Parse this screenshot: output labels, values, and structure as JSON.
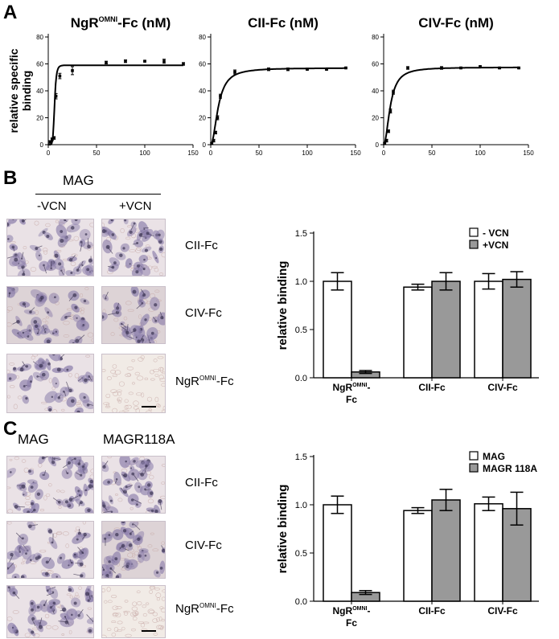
{
  "panels": {
    "A": "A",
    "B": "B",
    "C": "C"
  },
  "panelA": {
    "titles": [
      {
        "main": "NgR",
        "sup": "OMNI",
        "rest": "-Fc (nM)"
      },
      {
        "main": "CII-Fc (nM)",
        "sup": "",
        "rest": ""
      },
      {
        "main": "CIV-Fc (nM)",
        "sup": "",
        "rest": ""
      }
    ],
    "ylabel_line1": "relative specific",
    "ylabel_line2": "binding",
    "xticks": [
      "0",
      "50",
      "100",
      "150"
    ],
    "yticks": [
      "0",
      "20",
      "40",
      "60",
      "80"
    ]
  },
  "panelB": {
    "header": "MAG",
    "columns": [
      "-VCN",
      "+VCN"
    ],
    "rows": [
      "CII-Fc",
      "CIV-Fc"
    ],
    "row3_main": "NgR",
    "row3_sup": "OMNI",
    "row3_rest": "-Fc"
  },
  "panelC": {
    "columns": [
      "MAG",
      "MAGR118A"
    ],
    "rows": [
      "CII-Fc",
      "CIV-Fc"
    ],
    "row3_main": "NgR",
    "row3_sup": "OMNI",
    "row3_rest": "-Fc"
  },
  "colors": {
    "open_bar": "#ffffff",
    "grey_bar": "#999999",
    "tissue_bg": "#eae2e6",
    "cell": "#8f82ad"
  },
  "chart_data": [
    {
      "type": "scatter",
      "title": "NgR OMNI-Fc (nM)",
      "ylabel": "relative specific binding",
      "xlim": [
        0,
        150
      ],
      "ylim": [
        0,
        80
      ],
      "points": [
        [
          2,
          2
        ],
        [
          4,
          4
        ],
        [
          6,
          5
        ],
        [
          8,
          36
        ],
        [
          12,
          51
        ],
        [
          25,
          55
        ],
        [
          60,
          61
        ],
        [
          80,
          62
        ],
        [
          100,
          62
        ],
        [
          120,
          62
        ],
        [
          140,
          60
        ]
      ],
      "errors": [
        1,
        1,
        1,
        2,
        2,
        3,
        1,
        1,
        0.5,
        1.5,
        1
      ],
      "fit": {
        "bmax": 59,
        "kd": 6.5,
        "hill": 7
      }
    },
    {
      "type": "scatter",
      "title": "CII-Fc (nM)",
      "xlim": [
        0,
        150
      ],
      "ylim": [
        0,
        80
      ],
      "points": [
        [
          1,
          1
        ],
        [
          3,
          3
        ],
        [
          5,
          9
        ],
        [
          7,
          20
        ],
        [
          10,
          36
        ],
        [
          25,
          54
        ],
        [
          60,
          56
        ],
        [
          80,
          56
        ],
        [
          100,
          56
        ],
        [
          120,
          56
        ],
        [
          140,
          57
        ]
      ],
      "errors": [
        0.5,
        1,
        1,
        1.5,
        1.5,
        1.5,
        1,
        1,
        0.5,
        0.5,
        0.5
      ],
      "fit": {
        "bmax": 57,
        "kd": 8,
        "hill": 2
      }
    },
    {
      "type": "scatter",
      "title": "CIV-Fc (nM)",
      "xlim": [
        0,
        150
      ],
      "ylim": [
        0,
        80
      ],
      "points": [
        [
          1,
          1
        ],
        [
          3,
          3
        ],
        [
          5,
          10
        ],
        [
          7,
          25
        ],
        [
          10,
          39
        ],
        [
          25,
          57
        ],
        [
          60,
          57
        ],
        [
          80,
          57
        ],
        [
          100,
          58
        ],
        [
          120,
          57
        ],
        [
          140,
          57
        ]
      ],
      "errors": [
        0.5,
        1,
        1,
        1.5,
        1.5,
        1,
        1,
        0.5,
        0.5,
        0.5,
        0.5
      ],
      "fit": {
        "bmax": 57.5,
        "kd": 7,
        "hill": 2
      }
    },
    {
      "type": "bar",
      "ylabel": "relative binding",
      "ylim": [
        0,
        1.5
      ],
      "yticks": [
        "0.0",
        "0.5",
        "1.0",
        "1.5"
      ],
      "categories": [
        {
          "main": "NgR",
          "sup": "OMNI",
          "rest": "-",
          "line2": "Fc"
        },
        {
          "main": "CII-Fc",
          "sup": "",
          "rest": "",
          "line2": ""
        },
        {
          "main": "CIV-Fc",
          "sup": "",
          "rest": "",
          "line2": ""
        }
      ],
      "series": [
        {
          "name": "- VCN",
          "values": [
            1.0,
            0.94,
            1.0
          ],
          "errors": [
            0.09,
            0.03,
            0.08
          ]
        },
        {
          "name": "+VCN",
          "values": [
            0.06,
            1.0,
            1.02
          ],
          "errors": [
            0.015,
            0.09,
            0.08
          ]
        }
      ]
    },
    {
      "type": "bar",
      "ylabel": "relative binding",
      "ylim": [
        0,
        1.5
      ],
      "yticks": [
        "0.0",
        "0.5",
        "1.0",
        "1.5"
      ],
      "categories": [
        {
          "main": "NgR",
          "sup": "OMNI",
          "rest": "-",
          "line2": "Fc"
        },
        {
          "main": "CII-Fc",
          "sup": "",
          "rest": "",
          "line2": ""
        },
        {
          "main": "CIV-Fc",
          "sup": "",
          "rest": "",
          "line2": ""
        }
      ],
      "series": [
        {
          "name": "MAG",
          "values": [
            1.0,
            0.94,
            1.01
          ],
          "errors": [
            0.09,
            0.03,
            0.07
          ]
        },
        {
          "name": "MAGR 118A",
          "values": [
            0.09,
            1.05,
            0.96
          ],
          "errors": [
            0.02,
            0.11,
            0.17
          ]
        }
      ]
    }
  ]
}
